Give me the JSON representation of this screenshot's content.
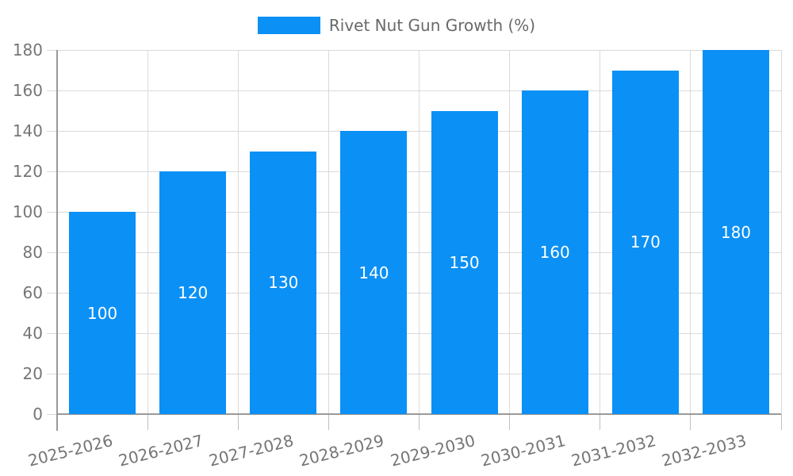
{
  "legend": {
    "items": [
      {
        "label": "Rivet Nut Gun Growth (%)",
        "color": "#0b90f5"
      }
    ],
    "position": "top-center"
  },
  "chart_data": {
    "type": "bar",
    "title": "",
    "categories": [
      "2025-2026",
      "2026-2027",
      "2027-2028",
      "2028-2029",
      "2029-2030",
      "2030-2031",
      "2031-2032",
      "2032-2033"
    ],
    "series": [
      {
        "name": "Rivet Nut Gun Growth (%)",
        "color": "#0b90f5",
        "values": [
          100,
          120,
          130,
          140,
          150,
          160,
          170,
          180
        ]
      }
    ],
    "xlabel": "",
    "ylabel": "",
    "ylim": [
      0,
      180
    ],
    "yticks": [
      0,
      20,
      40,
      60,
      80,
      100,
      120,
      140,
      160,
      180
    ],
    "grid": true,
    "vertical_gridlines": true,
    "x_tick_label_rotation_deg": -14,
    "value_labels": {
      "position": "inside-center",
      "color": "#ffffff"
    },
    "legend_position": "top-center"
  },
  "colors": {
    "bar": "#0b90f5",
    "grid": "#dadada",
    "x_tick_mark": "#c0c0c0",
    "axis": "#999999",
    "tick_text": "#757575",
    "legend_text": "#696969",
    "value_label_text": "#ffffff",
    "background": "#ffffff"
  }
}
